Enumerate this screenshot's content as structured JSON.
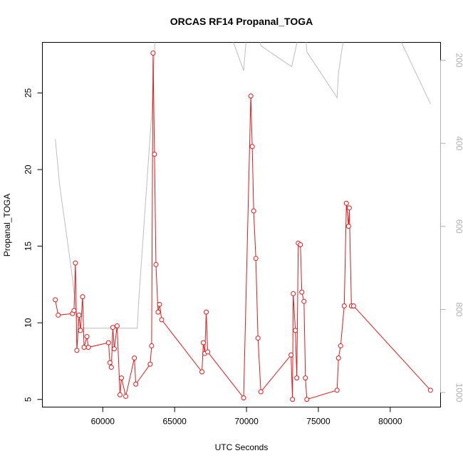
{
  "chart_data": {
    "type": "line",
    "title": "ORCAS RF14 Propanal_TOGA",
    "xlabel": "UTC Seconds",
    "ylabel": "Propanal_TOGA",
    "xlim": [
      55800,
      83500
    ],
    "ylim": [
      4.5,
      28.3
    ],
    "x_ticks": [
      60000,
      65000,
      70000,
      75000,
      80000
    ],
    "y_ticks": [
      5,
      10,
      15,
      20,
      25
    ],
    "y2_ticks": [
      200,
      400,
      600,
      800,
      1000
    ],
    "y2lim": [
      157,
      1035
    ],
    "grid": false,
    "legend": "none",
    "series": [
      {
        "color": "#e41a1c",
        "marker": "open-circle",
        "x": [
          56700,
          56900,
          57900,
          58000,
          58100,
          58200,
          58350,
          58450,
          58600,
          58700,
          58900,
          59000,
          60400,
          60500,
          60600,
          60700,
          60800,
          61000,
          61200,
          61300,
          61600,
          62200,
          62300,
          63300,
          63400,
          63500,
          63600,
          63700,
          63850,
          63950,
          64100,
          66900,
          67000,
          67100,
          67200,
          67300,
          69800,
          70300,
          70400,
          70500,
          70650,
          70800,
          71000,
          73100,
          73200,
          73250,
          73400,
          73500,
          73600,
          73750,
          73850,
          74000,
          74100,
          74200,
          76300,
          76400,
          76550,
          76800,
          76950,
          77100,
          77150,
          77300,
          77450,
          82800
        ],
        "values": [
          11.5,
          10.5,
          10.6,
          10.8,
          13.9,
          8.2,
          10.5,
          9.5,
          11.7,
          8.4,
          9.1,
          8.4,
          8.7,
          7.4,
          7.1,
          9.7,
          8.3,
          9.8,
          5.3,
          6.4,
          5.2,
          7.7,
          6.0,
          7.3,
          8.5,
          27.6,
          21.0,
          13.8,
          10.7,
          11.2,
          10.2,
          6.8,
          8.7,
          8.0,
          10.7,
          8.1,
          5.1,
          24.8,
          21.5,
          17.3,
          14.2,
          9.0,
          5.5,
          7.9,
          5.0,
          11.9,
          9.5,
          6.4,
          15.2,
          15.1,
          12.0,
          11.4,
          6.4,
          5.0,
          5.6,
          7.7,
          8.5,
          11.1,
          17.8,
          16.3,
          17.5,
          11.1,
          11.1,
          5.6
        ]
      },
      {
        "color": "#bdbdbd",
        "axis": "right",
        "x": [
          56700,
          57000,
          57800,
          58300,
          62400,
          62500,
          63400,
          63700,
          64000,
          67900,
          68500,
          69800,
          70000,
          70900,
          71000,
          72900,
          73150,
          74000,
          74200,
          76300,
          76400,
          77000,
          77400,
          80000,
          82800
        ],
        "values": [
          390,
          500,
          700,
          845,
          845,
          780,
          330,
          100,
          80,
          80,
          100,
          225,
          140,
          140,
          165,
          210,
          215,
          80,
          180,
          290,
          230,
          90,
          80,
          100,
          305
        ]
      }
    ]
  }
}
